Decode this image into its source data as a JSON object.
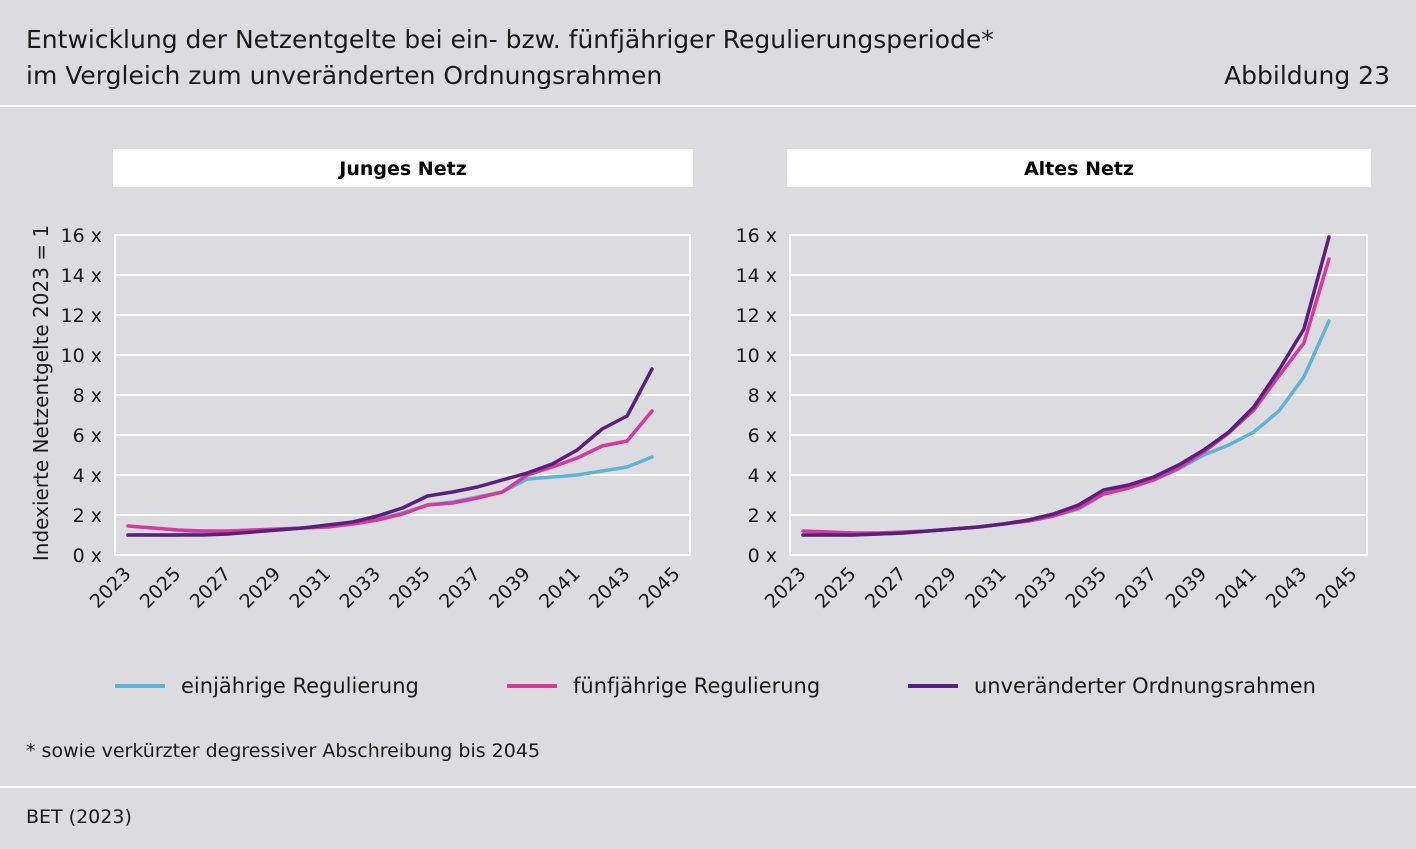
{
  "header": {
    "title_line1": "Entwicklung der Netzentgelte bei ein- bzw. fünfjähriger Regulierungsperiode*",
    "title_line2": "im Vergleich zum unveränderten Ordnungsrahmen",
    "figure_label": "Abbildung 23"
  },
  "colors": {
    "einjaehrig": "#5fb3d6",
    "fuenfjaehrig": "#d6389b",
    "unveraendert": "#5b1f7e"
  },
  "chart_data": [
    {
      "type": "line",
      "title": "Junges Netz",
      "ylabel": "Indexierte Netzentgelte 2023 = 1",
      "xlabel": "",
      "ylim": [
        0,
        16
      ],
      "yticks": [
        0,
        2,
        4,
        6,
        8,
        10,
        12,
        14,
        16
      ],
      "ytick_labels": [
        "0 x",
        "2 x",
        "4 x",
        "6 x",
        "8 x",
        "10 x",
        "12 x",
        "14 x",
        "16 x"
      ],
      "xticks": [
        "2023",
        "2025",
        "2027",
        "2029",
        "2031",
        "2033",
        "2035",
        "2037",
        "2039",
        "2041",
        "2043",
        "2045"
      ],
      "x": [
        2023,
        2024,
        2025,
        2026,
        2027,
        2028,
        2029,
        2030,
        2031,
        2032,
        2033,
        2034,
        2035,
        2036,
        2037,
        2038,
        2039,
        2040,
        2041,
        2042,
        2043,
        2044
      ],
      "series": [
        {
          "name": "einjährige Regulierung",
          "color_key": "einjaehrig",
          "values": [
            1.0,
            1.0,
            1.0,
            1.1,
            1.15,
            1.2,
            1.25,
            1.35,
            1.45,
            1.6,
            1.8,
            2.1,
            2.5,
            2.65,
            2.9,
            3.15,
            3.8,
            3.9,
            4.0,
            4.2,
            4.4,
            4.9
          ]
        },
        {
          "name": "fünfjährige Regulierung",
          "color_key": "fuenfjaehrig",
          "values": [
            1.45,
            1.35,
            1.25,
            1.2,
            1.2,
            1.25,
            1.3,
            1.35,
            1.4,
            1.55,
            1.75,
            2.05,
            2.5,
            2.6,
            2.85,
            3.15,
            4.0,
            4.4,
            4.85,
            5.45,
            5.7,
            7.2
          ]
        },
        {
          "name": "unveränderter Ordnungsrahmen",
          "color_key": "unveraendert",
          "values": [
            1.0,
            1.0,
            1.0,
            1.0,
            1.05,
            1.15,
            1.25,
            1.35,
            1.5,
            1.65,
            1.95,
            2.35,
            2.95,
            3.15,
            3.4,
            3.75,
            4.1,
            4.55,
            5.25,
            6.3,
            6.95,
            9.3
          ]
        }
      ]
    },
    {
      "type": "line",
      "title": "Altes Netz",
      "ylabel": "",
      "xlabel": "",
      "ylim": [
        0,
        16
      ],
      "yticks": [
        0,
        2,
        4,
        6,
        8,
        10,
        12,
        14,
        16
      ],
      "ytick_labels": [
        "0 x",
        "2 x",
        "4 x",
        "6 x",
        "8 x",
        "10 x",
        "12 x",
        "14 x",
        "16 x"
      ],
      "xticks": [
        "2023",
        "2025",
        "2027",
        "2029",
        "2031",
        "2033",
        "2035",
        "2037",
        "2039",
        "2041",
        "2043",
        "2045"
      ],
      "x": [
        2023,
        2024,
        2025,
        2026,
        2027,
        2028,
        2029,
        2030,
        2031,
        2032,
        2033,
        2034,
        2035,
        2036,
        2037,
        2038,
        2039,
        2040,
        2041,
        2042,
        2043,
        2044
      ],
      "series": [
        {
          "name": "einjährige Regulierung",
          "color_key": "einjaehrig",
          "values": [
            1.0,
            1.0,
            1.0,
            1.05,
            1.1,
            1.2,
            1.3,
            1.4,
            1.55,
            1.7,
            1.95,
            2.3,
            3.05,
            3.35,
            3.75,
            4.3,
            5.0,
            5.5,
            6.15,
            7.2,
            8.9,
            11.7
          ]
        },
        {
          "name": "fünfjährige Regulierung",
          "color_key": "fuenfjaehrig",
          "values": [
            1.2,
            1.15,
            1.1,
            1.1,
            1.15,
            1.2,
            1.3,
            1.4,
            1.55,
            1.7,
            1.95,
            2.35,
            3.05,
            3.35,
            3.75,
            4.35,
            5.15,
            6.1,
            7.25,
            8.95,
            10.6,
            14.8
          ]
        },
        {
          "name": "unveränderter Ordnungsrahmen",
          "color_key": "unveraendert",
          "values": [
            1.0,
            1.0,
            1.0,
            1.05,
            1.1,
            1.2,
            1.3,
            1.4,
            1.55,
            1.75,
            2.05,
            2.5,
            3.25,
            3.5,
            3.9,
            4.5,
            5.25,
            6.15,
            7.4,
            9.25,
            11.3,
            15.9
          ]
        }
      ]
    }
  ],
  "legend": {
    "items": [
      {
        "label": "einjährige Regulierung",
        "color_key": "einjaehrig"
      },
      {
        "label": "fünfjährige Regulierung",
        "color_key": "fuenfjaehrig"
      },
      {
        "label": "unveränderter Ordnungsrahmen",
        "color_key": "unveraendert"
      }
    ]
  },
  "footnote": "* sowie verkürzter degressiver Abschreibung bis 2045",
  "source": "BET (2023)"
}
